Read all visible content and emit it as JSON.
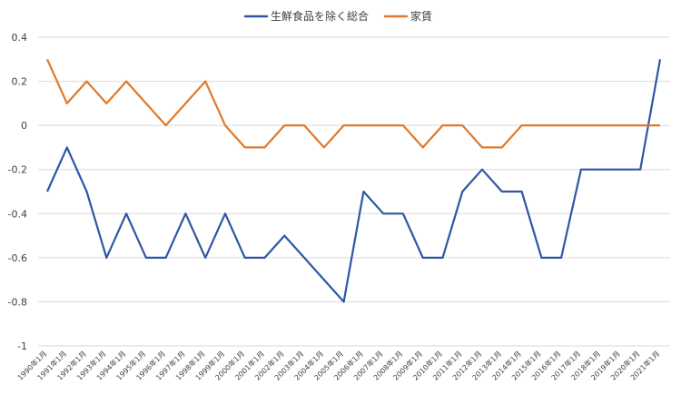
{
  "chart_data": {
    "type": "line",
    "title": "",
    "xlabel": "",
    "ylabel": "",
    "ylim": [
      -1,
      0.4
    ],
    "yticks": [
      "0.4",
      "0.2",
      "0",
      "-0.2",
      "-0.4",
      "-0.6",
      "-0.8",
      "-1"
    ],
    "grid": true,
    "legend_position": "top",
    "categories": [
      "1990年1月",
      "1991年1月",
      "1992年1月",
      "1993年1月",
      "1994年1月",
      "1995年1月",
      "1996年1月",
      "1997年1月",
      "1998年1月",
      "1999年1月",
      "2000年1月",
      "2001年1月",
      "2002年1月",
      "2003年1月",
      "2004年1月",
      "2005年1月",
      "2006年1月",
      "2007年1月",
      "2008年1月",
      "2009年1月",
      "2010年1月",
      "2011年1月",
      "2012年1月",
      "2013年1月",
      "2014年1月",
      "2015年1月",
      "2016年1月",
      "2017年1月",
      "2018年1月",
      "2019年1月",
      "2020年1月",
      "2021年1月"
    ],
    "series": [
      {
        "name": "生鮮食品を除く総合",
        "color": "#2e56a4",
        "values": [
          -0.3,
          -0.1,
          -0.3,
          -0.6,
          -0.4,
          -0.6,
          -0.6,
          -0.4,
          -0.6,
          -0.4,
          -0.6,
          -0.6,
          -0.5,
          -0.6,
          -0.7,
          -0.8,
          -0.3,
          -0.4,
          -0.4,
          -0.6,
          -0.6,
          -0.3,
          -0.2,
          -0.3,
          -0.3,
          -0.6,
          -0.6,
          -0.2,
          -0.2,
          -0.2,
          -0.2,
          0.3
        ]
      },
      {
        "name": "家賃",
        "color": "#e0792b",
        "values": [
          0.3,
          0.1,
          0.2,
          0.1,
          0.2,
          0.1,
          0,
          0.1,
          0.2,
          0,
          -0.1,
          -0.1,
          0,
          0,
          -0.1,
          0,
          0,
          0,
          0,
          -0.1,
          0,
          0,
          -0.1,
          -0.1,
          0,
          0,
          0,
          0,
          0,
          0,
          0,
          0
        ]
      }
    ]
  }
}
